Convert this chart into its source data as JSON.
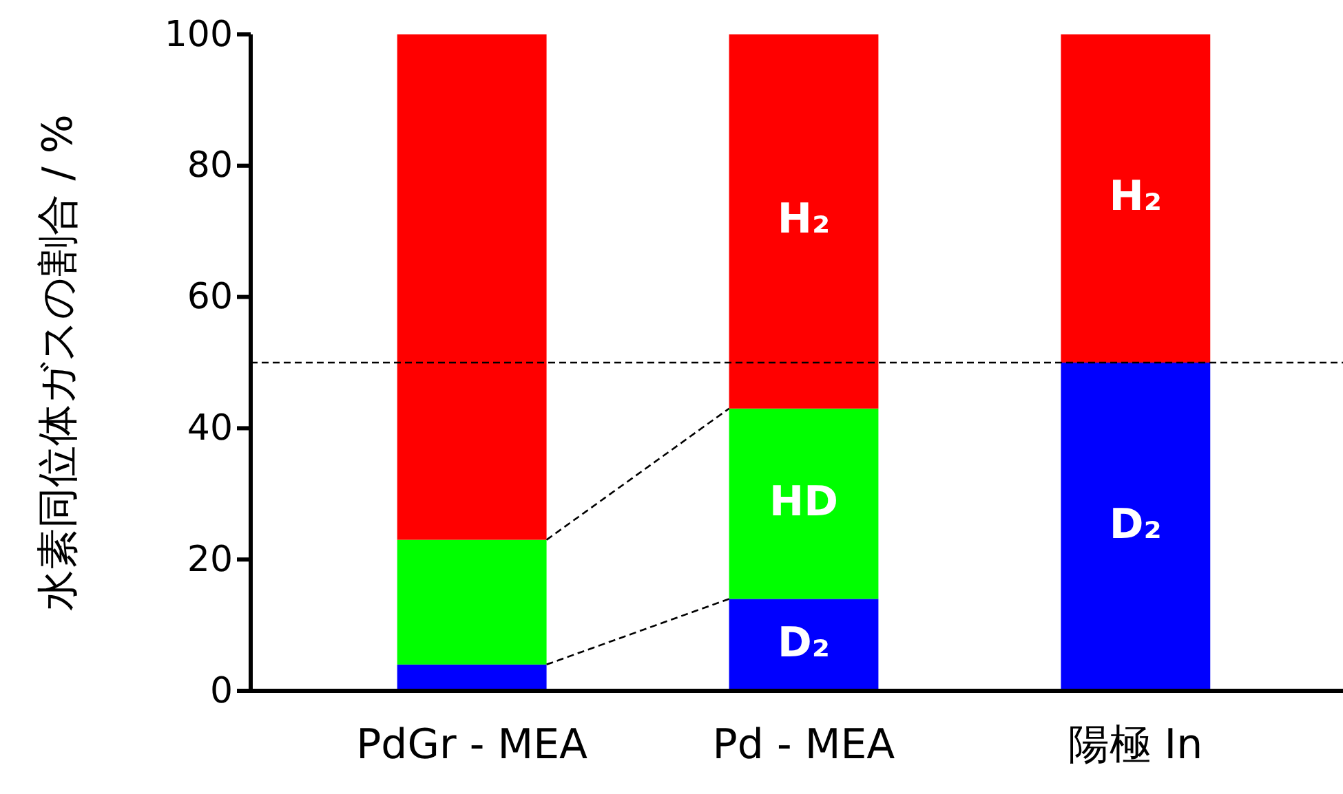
{
  "chart_data": {
    "type": "bar",
    "stacked": true,
    "ylabel": "水素同位体ガスの割合 / %",
    "categories": [
      "PdGr - MEA",
      "Pd - MEA",
      "陽極 In"
    ],
    "series": [
      {
        "name": "D₂",
        "color": "#0000ff",
        "values": [
          4,
          14,
          50
        ]
      },
      {
        "name": "HD",
        "color": "#00ff00",
        "values": [
          19,
          29,
          0
        ]
      },
      {
        "name": "H₂",
        "color": "#ff0000",
        "values": [
          77,
          57,
          50
        ]
      }
    ],
    "ylim": [
      0,
      100
    ],
    "yticks": [
      0,
      20,
      40,
      60,
      80,
      100
    ],
    "grid": false,
    "ref_lines": [
      {
        "axis": "y",
        "value": 50,
        "line_style": "dashed",
        "color": "#000000"
      }
    ]
  }
}
